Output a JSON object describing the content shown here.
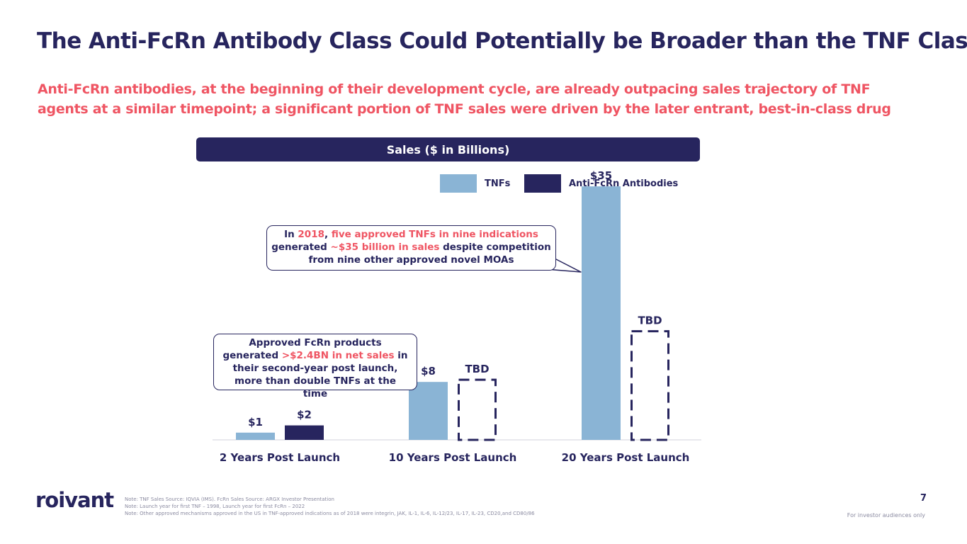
{
  "slide": {
    "title": "The Anti-FcRn Antibody Class Could Potentially be Broader than the TNF Class",
    "subtitle_line1": "Anti-FcRn antibodies, at the beginning of their development cycle, are already outpacing sales trajectory of TNF",
    "subtitle_line2": "agents at a similar timepoint; a significant portion of TNF sales were driven by the later entrant, best-in-class drug",
    "page_number": "7",
    "footer_note": "For investor audiences only",
    "logo": "roivant",
    "notes": [
      "Note: TNF Sales Source: IQVIA (IMS). FcRn Sales Source: ARGX Investor Presentation",
      "Note: Launch year for first TNF – 1998, Launch year for first FcRn – 2022",
      "Note: Other approved mechanisms approved in the US in TNF-approved indications as of 2018 were integrin, JAK, IL-1, IL-6, IL-12/23, IL-17, IL-23, CD20,and CD80/86"
    ]
  },
  "callouts": {
    "tnf": {
      "p1": "In ",
      "h1": "2018",
      "p2": ", ",
      "h2": "five approved TNFs in nine indications",
      "p3": " generated ",
      "h3": "~$35 billion in sales",
      "p4": " despite competition from nine other approved novel MOAs"
    },
    "fcrn": {
      "p1": "Approved FcRn products generated ",
      "h1": ">$2.4BN in net sales",
      "p2": " in their second-year post launch, more than double TNFs at the time"
    }
  },
  "chart_data": {
    "type": "bar",
    "title": "Sales ($ in Billions)",
    "categories": [
      "2 Years Post Launch",
      "10 Years Post Launch",
      "20 Years Post Launch"
    ],
    "series": [
      {
        "name": "TNFs",
        "values": [
          1,
          8,
          35
        ],
        "labels": [
          "$1",
          "$8",
          "$35"
        ],
        "color": "#8ab4d5"
      },
      {
        "name": "Anti-FcRn Antibodies",
        "values": [
          2,
          null,
          null
        ],
        "labels": [
          "$2",
          "TBD",
          "TBD"
        ],
        "color": "#27255e",
        "tbd_placeholder": [
          false,
          true,
          true
        ],
        "tbd_estimate": [
          null,
          8.3,
          15
        ]
      }
    ],
    "ylim": [
      0,
      40
    ],
    "grid": false,
    "legend_position": "top-center"
  }
}
